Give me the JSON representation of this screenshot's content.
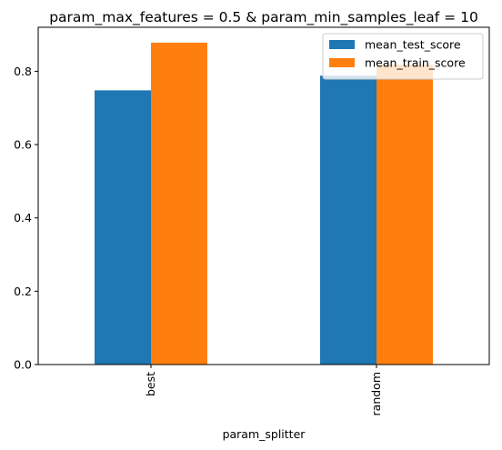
{
  "chart_data": {
    "type": "bar",
    "title": "param_max_features = 0.5 & param_min_samples_leaf = 10",
    "xlabel": "param_splitter",
    "ylabel": "",
    "categories": [
      "best",
      "random"
    ],
    "series": [
      {
        "name": "mean_test_score",
        "values": [
          0.748,
          0.788
        ],
        "color": "#1f77b4"
      },
      {
        "name": "mean_train_score",
        "values": [
          0.878,
          0.818
        ],
        "color": "#ff7f0e"
      }
    ],
    "ylim": [
      0,
      0.92
    ],
    "yticks": [
      "0.0",
      "0.2",
      "0.4",
      "0.6",
      "0.8"
    ],
    "grid": false,
    "legend_position": "top-right"
  }
}
